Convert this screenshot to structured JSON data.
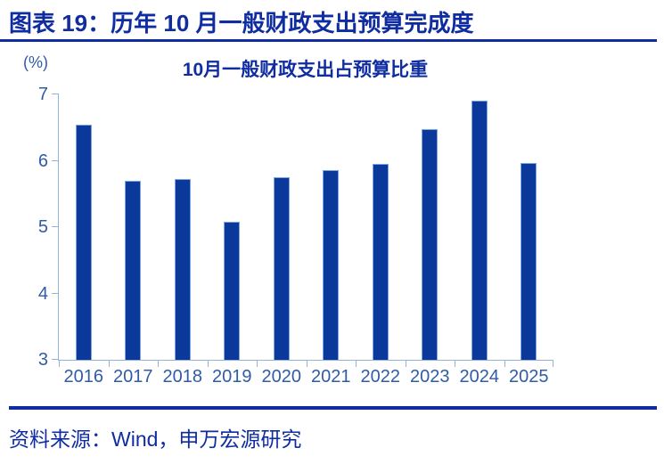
{
  "header": {
    "title": "图表 19：历年 10 月一般财政支出预算完成度"
  },
  "chart_data": {
    "type": "bar",
    "title": "10月一般财政支出占预算比重",
    "unit_label": "(%)",
    "categories": [
      "2016",
      "2017",
      "2018",
      "2019",
      "2020",
      "2021",
      "2022",
      "2023",
      "2024",
      "2025"
    ],
    "values": [
      6.54,
      5.7,
      5.73,
      5.08,
      5.75,
      5.86,
      5.95,
      6.48,
      6.9,
      5.97
    ],
    "ylim": [
      3,
      7
    ],
    "yticks": [
      3,
      4,
      5,
      6,
      7
    ],
    "grid": false,
    "legend": "none",
    "colors": {
      "bar": "#0A399B",
      "axis": "#95B3D7",
      "tick_label": "#2F5BA7",
      "title_text": "#0F2DA0"
    }
  },
  "footer": {
    "source": "资料来源：Wind，申万宏源研究"
  }
}
